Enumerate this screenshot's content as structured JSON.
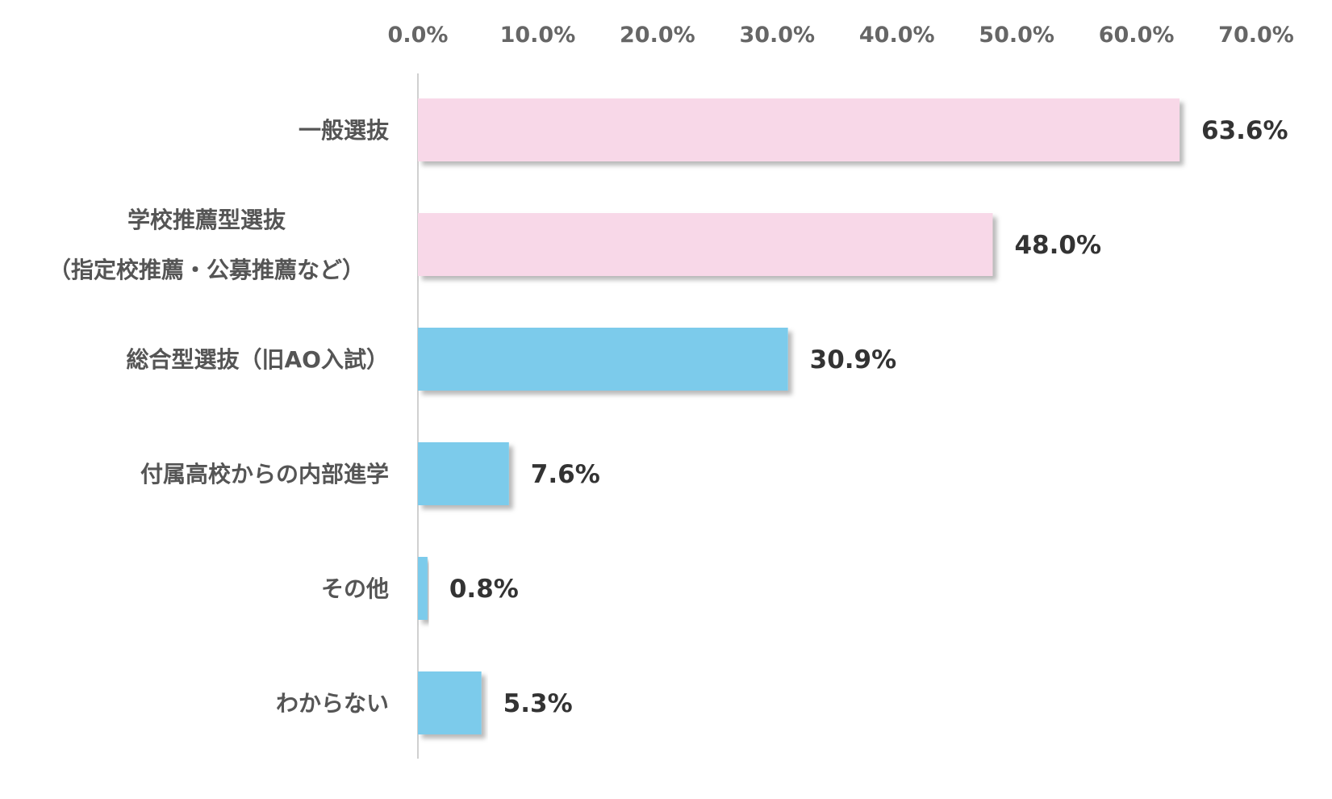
{
  "chart_data": {
    "type": "bar",
    "orientation": "horizontal",
    "title": "",
    "xlabel": "",
    "ylabel": "",
    "xlim": [
      0,
      70
    ],
    "x_tick_values": [
      0,
      10,
      20,
      30,
      40,
      50,
      60,
      70
    ],
    "x_tick_labels": [
      "0.0%",
      "10.0%",
      "20.0%",
      "30.0%",
      "40.0%",
      "50.0%",
      "60.0%",
      "70.0%"
    ],
    "x_axis_position": "top",
    "grid": false,
    "legend": "none",
    "categories": [
      [
        "一般選抜"
      ],
      [
        "学校推薦型選抜",
        "（指定校推薦・公募推薦など）"
      ],
      [
        "総合型選抜（旧AO入試）"
      ],
      [
        "付属高校からの内部進学"
      ],
      [
        "その他"
      ],
      [
        "わからない"
      ]
    ],
    "values": [
      63.6,
      48.0,
      30.9,
      7.6,
      0.8,
      5.3
    ],
    "value_labels": [
      "63.6%",
      "48.0%",
      "30.9%",
      "7.6%",
      "0.8%",
      "5.3%"
    ],
    "bar_colors": [
      "#f8d8e8",
      "#f8d8e8",
      "#7bcbeb",
      "#7bcbeb",
      "#7bcbeb",
      "#7bcbeb"
    ],
    "axis_line_color": "#d0d0d0"
  }
}
